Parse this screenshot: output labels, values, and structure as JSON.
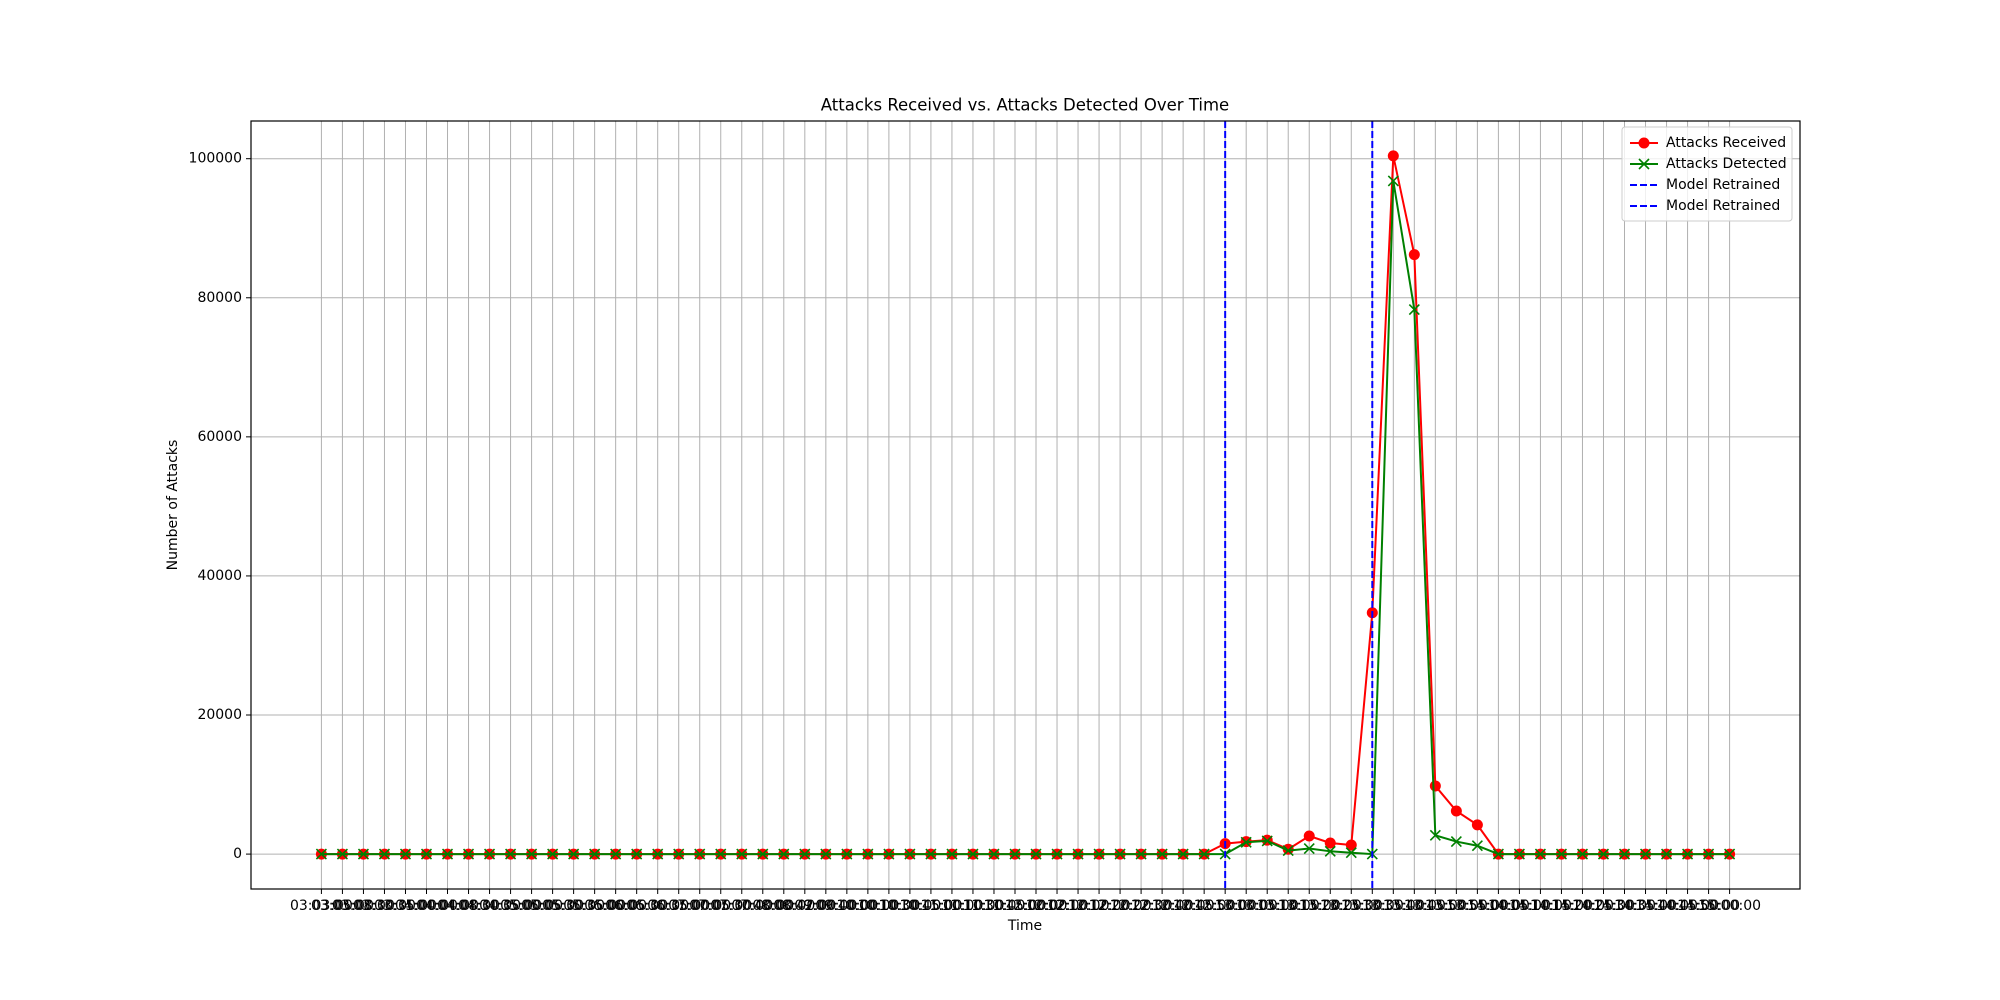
{
  "chart_data": {
    "type": "line",
    "title": "Attacks Received vs. Attacks Detected Over Time",
    "xlabel": "Time",
    "ylabel": "Number of Attacks",
    "categories": [
      "03:03:00",
      "03:05:00",
      "03:08:00",
      "03:30:00",
      "03:35:00",
      "04:00:00",
      "04:04:00",
      "04:08:00",
      "04:30:00",
      "04:35:00",
      "05:00:00",
      "05:05:00",
      "05:30:00",
      "05:35:00",
      "06:00:00",
      "06:05:00",
      "06:30:00",
      "06:35:00",
      "07:00:00",
      "07:05:00",
      "07:30:00",
      "07:40:00",
      "08:00:00",
      "08:42:00",
      "09:00:00",
      "09:40:00",
      "10:00:00",
      "10:10:00",
      "10:30:00",
      "10:45:00",
      "11:00:00",
      "11:10:00",
      "11:30:00",
      "11:45:00",
      "12:00:00",
      "12:02:00",
      "12:10:00",
      "12:12:00",
      "12:20:00",
      "12:22:00",
      "12:30:00",
      "12:40:00",
      "12:45:00",
      "12:50:00",
      "13:00:00",
      "13:05:00",
      "13:10:00",
      "13:15:00",
      "13:20:00",
      "13:25:00",
      "13:30:00",
      "13:35:00",
      "13:40:00",
      "13:45:00",
      "13:50:00",
      "13:55:00",
      "14:00:00",
      "14:05:00",
      "14:10:00",
      "14:15:00",
      "14:20:00",
      "14:25:00",
      "14:30:00",
      "14:35:00",
      "14:40:00",
      "14:45:00",
      "14:50:00",
      "15:00:00"
    ],
    "series": [
      {
        "name": "Attacks Received",
        "color": "#ff0000",
        "marker": "o",
        "values": [
          0,
          0,
          0,
          0,
          0,
          0,
          0,
          0,
          0,
          0,
          0,
          0,
          0,
          0,
          0,
          0,
          0,
          0,
          0,
          0,
          0,
          0,
          0,
          0,
          0,
          0,
          0,
          0,
          0,
          0,
          0,
          0,
          0,
          0,
          0,
          0,
          0,
          0,
          0,
          0,
          0,
          0,
          0,
          1500,
          1800,
          2000,
          700,
          2600,
          1600,
          1300,
          34700,
          100400,
          86200,
          9800,
          6200,
          4200,
          0,
          0,
          0,
          0,
          0,
          0,
          0,
          0,
          0,
          0,
          0,
          0
        ]
      },
      {
        "name": "Attacks Detected",
        "color": "#008000",
        "marker": "x",
        "values": [
          0,
          0,
          0,
          0,
          0,
          0,
          0,
          0,
          0,
          0,
          0,
          0,
          0,
          0,
          0,
          0,
          0,
          0,
          0,
          0,
          0,
          0,
          0,
          0,
          0,
          0,
          0,
          0,
          0,
          0,
          0,
          0,
          0,
          0,
          0,
          0,
          0,
          0,
          0,
          0,
          0,
          0,
          0,
          0,
          1700,
          1900,
          500,
          800,
          400,
          200,
          0,
          96800,
          78300,
          2700,
          1800,
          1200,
          0,
          0,
          0,
          0,
          0,
          0,
          0,
          0,
          0,
          0,
          0,
          0
        ]
      }
    ],
    "vlines": [
      {
        "name": "Model Retrained",
        "x": "12:50:00",
        "color": "#0000ff"
      },
      {
        "name": "Model Retrained",
        "x": "13:30:00",
        "color": "#0000ff"
      }
    ],
    "ylim": [
      -5020,
      105420
    ],
    "yticks": [
      0,
      20000,
      40000,
      60000,
      80000,
      100000
    ],
    "grid": true,
    "legend": "upper right"
  }
}
